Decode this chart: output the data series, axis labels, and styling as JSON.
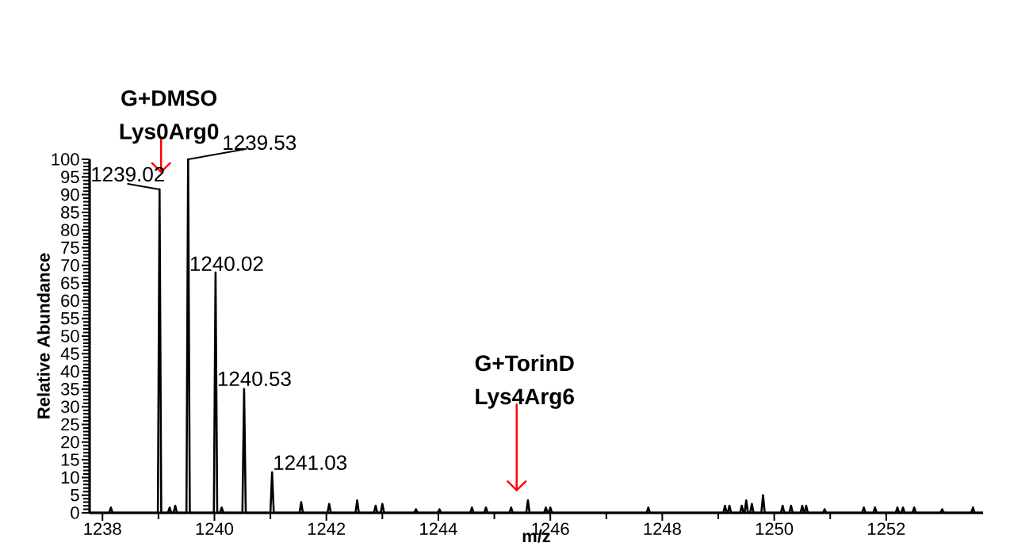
{
  "chart_data": {
    "type": "line",
    "xlabel": "m/z",
    "ylabel": "Relative Abundance",
    "color": "#000000",
    "marker": "none",
    "line_style": "solid",
    "grid": false,
    "xlim": [
      1237.77,
      1253.73
    ],
    "ylim": [
      0,
      100
    ],
    "xticks": [
      1238,
      1240,
      1242,
      1244,
      1246,
      1248,
      1250,
      1252
    ],
    "yticks": [
      0,
      5,
      10,
      15,
      20,
      25,
      30,
      35,
      40,
      45,
      50,
      55,
      60,
      65,
      70,
      75,
      80,
      85,
      90,
      95,
      100
    ],
    "x": [
      1237.77,
      1238.12,
      1238.15,
      1238.18,
      1238.99,
      1239.02,
      1239.05,
      1239.17,
      1239.2,
      1239.23,
      1239.27,
      1239.3,
      1239.33,
      1239.5,
      1239.53,
      1239.56,
      1239.99,
      1240.02,
      1240.05,
      1240.1,
      1240.13,
      1240.16,
      1240.5,
      1240.53,
      1240.56,
      1241.0,
      1241.03,
      1241.06,
      1241.52,
      1241.55,
      1241.58,
      1242.02,
      1242.05,
      1242.08,
      1242.52,
      1242.55,
      1242.58,
      1242.85,
      1242.88,
      1242.91,
      1242.97,
      1243.0,
      1243.03,
      1243.57,
      1243.6,
      1243.63,
      1243.99,
      1244.02,
      1244.05,
      1244.57,
      1244.6,
      1244.63,
      1244.82,
      1244.85,
      1244.88,
      1245.27,
      1245.3,
      1245.33,
      1245.57,
      1245.6,
      1245.63,
      1245.89,
      1245.92,
      1245.95,
      1245.97,
      1246.0,
      1246.03,
      1247.72,
      1247.75,
      1247.78,
      1249.09,
      1249.12,
      1249.15,
      1249.17,
      1249.2,
      1249.23,
      1249.39,
      1249.42,
      1249.45,
      1249.47,
      1249.5,
      1249.53,
      1249.57,
      1249.6,
      1249.63,
      1249.77,
      1249.8,
      1249.83,
      1250.12,
      1250.15,
      1250.18,
      1250.27,
      1250.3,
      1250.33,
      1250.47,
      1250.5,
      1250.53,
      1250.54,
      1250.57,
      1250.6,
      1250.87,
      1250.9,
      1250.93,
      1251.57,
      1251.6,
      1251.63,
      1251.77,
      1251.8,
      1251.83,
      1252.17,
      1252.2,
      1252.23,
      1252.27,
      1252.3,
      1252.33,
      1252.47,
      1252.5,
      1252.53,
      1252.97,
      1253.0,
      1253.03,
      1253.52,
      1253.55,
      1253.58,
      1253.73
    ],
    "values": [
      0,
      0,
      1.5,
      0,
      0,
      91.5,
      0,
      0,
      1.5,
      0,
      0,
      2,
      0,
      0,
      100,
      0,
      0,
      68,
      0,
      0,
      1.5,
      0,
      0,
      35,
      0,
      0,
      11.5,
      0,
      0,
      3,
      0,
      0,
      2.5,
      0,
      0,
      3.5,
      0,
      0,
      2,
      0,
      0,
      2.5,
      0,
      0,
      1,
      0,
      0,
      1,
      0,
      0,
      1.5,
      0,
      0,
      1.5,
      0,
      0,
      1.5,
      0,
      0,
      3.5,
      0,
      0,
      1.5,
      0,
      0,
      1.5,
      0,
      0,
      1.5,
      0,
      0,
      2,
      0,
      0,
      2,
      0,
      0,
      2,
      0,
      0,
      3.5,
      0,
      0,
      2.5,
      0,
      0,
      5,
      0,
      0,
      2,
      0,
      0,
      2,
      0,
      0,
      2,
      0,
      0,
      2,
      0,
      0,
      1,
      0,
      0,
      1.5,
      0,
      0,
      1.5,
      0,
      0,
      1.5,
      0,
      0,
      1.5,
      0,
      0,
      1.5,
      0,
      0,
      1,
      0,
      0,
      1.5,
      0,
      0
    ],
    "annotations": [
      "G+DMSO Lys0Arg0",
      "G+TorinD Lys4Arg6",
      {
        "text": "1239.02",
        "x": 1239.02,
        "y": 91.5
      },
      {
        "text": "1239.53",
        "x": 1239.53,
        "y": 100
      },
      {
        "text": "1240.02",
        "x": 1240.02,
        "y": 68
      },
      {
        "text": "1240.53",
        "x": 1240.53,
        "y": 35
      },
      {
        "text": "1241.03",
        "x": 1241.03,
        "y": 11.5
      }
    ]
  }
}
